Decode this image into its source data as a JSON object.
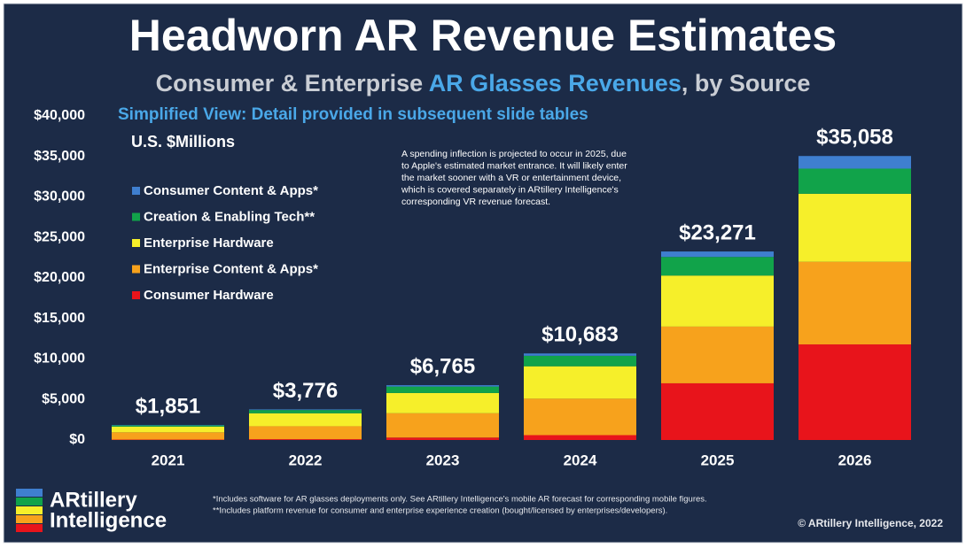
{
  "chart_data": {
    "type": "stacked-bar",
    "title": "Headworn AR Revenue Estimates",
    "subtitle": [
      "Consumer & Enterprise ",
      "AR Glasses Revenues",
      ", by Source"
    ],
    "note": "Simplified View: Detail provided in subsequent slide tables",
    "unit_label": "U.S. $Millions",
    "annotation": [
      "A spending inflection is projected to occur in 2025, due",
      "to Apple's estimated market entrance. It will likely enter",
      "the market sooner with a VR or entertainment device,",
      "which is covered separately in ARtillery Intelligence's",
      "corresponding VR revenue forecast."
    ],
    "categories": [
      "2021",
      "2022",
      "2023",
      "2024",
      "2025",
      "2026"
    ],
    "series": [
      {
        "name": "Consumer Hardware",
        "color": "#e8141b",
        "values": [
          50,
          100,
          300,
          600,
          7000,
          11800
        ]
      },
      {
        "name": "Enterprise Content & Apps*",
        "color": "#f7a21c",
        "values": [
          900,
          1600,
          3000,
          4500,
          7000,
          10200
        ]
      },
      {
        "name": "Enterprise Hardware",
        "color": "#f6ef2a",
        "values": [
          700,
          1600,
          2500,
          4000,
          6300,
          8400
        ]
      },
      {
        "name": "Creation & Enabling Tech**",
        "color": "#11a34a",
        "values": [
          150,
          400,
          800,
          1300,
          2300,
          3100
        ]
      },
      {
        "name": "Consumer Content & Apps*",
        "color": "#3f7fcf",
        "values": [
          51,
          76,
          165,
          283,
          671,
          1558
        ]
      }
    ],
    "totals": [
      1851,
      3776,
      6765,
      10683,
      23271,
      35058
    ],
    "total_labels": [
      "$1,851",
      "$3,776",
      "$6,765",
      "$10,683",
      "$23,271",
      "$35,058"
    ],
    "ylim": [
      0,
      40000
    ],
    "yticks": [
      {
        "value": 0,
        "label": "$0"
      },
      {
        "value": 5000,
        "label": "$5,000"
      },
      {
        "value": 10000,
        "label": "$10,000"
      },
      {
        "value": 15000,
        "label": "$15,000"
      },
      {
        "value": 20000,
        "label": "$20,000"
      },
      {
        "value": 25000,
        "label": "$25,000"
      },
      {
        "value": 30000,
        "label": "$30,000"
      },
      {
        "value": 35000,
        "label": "$35,000"
      },
      {
        "value": 40000,
        "label": "$40,000"
      }
    ],
    "grid": false,
    "legend_position": "upper-left",
    "footnotes": [
      "*Includes software for AR glasses deployments only. See ARtillery Intelligence's mobile AR forecast for corresponding mobile figures.",
      "**Includes platform revenue for consumer and enterprise experience creation (bought/licensed by enterprises/developers)."
    ],
    "logo": [
      "ARtillery",
      "Intelligence"
    ],
    "copyright": "© ARtillery Intelligence, 2022"
  }
}
